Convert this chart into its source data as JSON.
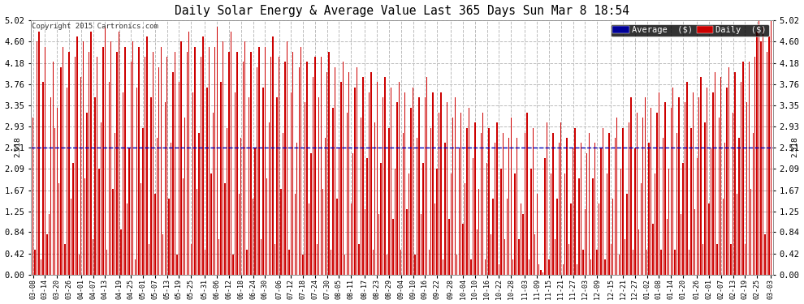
{
  "title": "Daily Solar Energy & Average Value Last 365 Days Sun Mar 8 18:54",
  "copyright": "Copyright 2015 Cartronics.com",
  "avg_value": 2.518,
  "ymax": 5.02,
  "yticks": [
    0.0,
    0.42,
    0.84,
    1.25,
    1.67,
    2.09,
    2.51,
    2.93,
    3.35,
    3.76,
    4.18,
    4.6,
    5.02
  ],
  "bar_color": "#cc0000",
  "avg_line_color": "#0000bb",
  "background_color": "#ffffff",
  "grid_color": "#bbbbbb",
  "legend_avg_bg": "#000099",
  "legend_daily_bg": "#cc0000",
  "legend_text_color": "#ffffff",
  "bar_width": 0.55,
  "xtick_labels": [
    "03-08",
    "03-14",
    "03-20",
    "03-26",
    "04-01",
    "04-07",
    "04-13",
    "04-19",
    "04-25",
    "05-01",
    "05-07",
    "05-13",
    "05-19",
    "05-25",
    "05-31",
    "06-06",
    "06-12",
    "06-18",
    "06-24",
    "06-30",
    "07-06",
    "07-12",
    "07-18",
    "07-24",
    "07-30",
    "08-05",
    "08-11",
    "08-17",
    "08-23",
    "08-29",
    "09-04",
    "09-10",
    "09-16",
    "09-22",
    "09-28",
    "10-04",
    "10-10",
    "10-16",
    "10-22",
    "10-28",
    "11-03",
    "11-09",
    "11-15",
    "11-21",
    "11-27",
    "12-03",
    "12-09",
    "12-15",
    "12-21",
    "12-27",
    "01-02",
    "01-08",
    "01-14",
    "01-20",
    "01-26",
    "02-01",
    "02-07",
    "02-13",
    "02-19",
    "02-25",
    "03-03"
  ],
  "daily_values": [
    3.1,
    0.5,
    4.6,
    4.8,
    0.3,
    3.8,
    4.5,
    0.8,
    1.2,
    3.5,
    4.2,
    2.9,
    3.3,
    1.8,
    4.1,
    4.5,
    0.6,
    3.7,
    4.4,
    1.5,
    2.2,
    4.3,
    4.7,
    0.4,
    3.9,
    4.6,
    1.9,
    3.2,
    4.4,
    4.8,
    0.7,
    3.5,
    4.3,
    2.1,
    3.0,
    4.5,
    4.9,
    0.5,
    3.8,
    4.6,
    1.7,
    2.8,
    4.4,
    4.8,
    0.9,
    3.6,
    4.5,
    1.4,
    2.5,
    4.2,
    4.6,
    0.3,
    3.7,
    4.5,
    1.8,
    2.9,
    4.3,
    4.7,
    0.6,
    3.5,
    4.4,
    1.6,
    2.7,
    4.1,
    4.5,
    0.8,
    3.4,
    4.3,
    1.5,
    2.6,
    4.0,
    4.4,
    0.4,
    3.8,
    4.6,
    1.9,
    3.1,
    4.4,
    4.8,
    0.6,
    3.6,
    4.5,
    1.7,
    2.8,
    4.3,
    4.7,
    0.5,
    3.7,
    4.5,
    2.0,
    3.2,
    4.5,
    4.9,
    0.7,
    3.8,
    4.6,
    1.8,
    2.9,
    4.4,
    4.8,
    0.4,
    3.6,
    4.4,
    1.6,
    2.7,
    4.2,
    4.6,
    0.5,
    3.5,
    4.4,
    1.5,
    2.5,
    4.1,
    4.5,
    0.7,
    3.7,
    4.5,
    1.9,
    3.0,
    4.3,
    4.7,
    0.6,
    3.5,
    4.3,
    1.7,
    2.8,
    4.2,
    4.6,
    0.5,
    3.6,
    4.4,
    1.6,
    2.6,
    4.1,
    4.5,
    0.4,
    3.4,
    4.2,
    1.4,
    2.4,
    3.9,
    4.3,
    0.6,
    3.5,
    4.3,
    1.7,
    2.7,
    4.0,
    4.4,
    0.5,
    3.3,
    4.1,
    1.5,
    2.5,
    3.8,
    4.2,
    0.4,
    3.2,
    4.0,
    1.4,
    2.4,
    3.7,
    4.1,
    0.6,
    3.1,
    3.9,
    1.3,
    2.3,
    3.6,
    4.0,
    0.5,
    3.0,
    3.8,
    1.2,
    2.2,
    3.5,
    3.9,
    0.4,
    2.9,
    3.7,
    1.1,
    2.1,
    3.4,
    3.8,
    0.5,
    2.8,
    3.6,
    1.3,
    2.0,
    3.3,
    3.7,
    0.4,
    2.7,
    3.5,
    1.2,
    2.2,
    3.5,
    3.9,
    0.5,
    2.9,
    3.6,
    1.4,
    2.1,
    3.2,
    3.6,
    0.3,
    2.6,
    3.4,
    1.1,
    2.0,
    3.1,
    3.5,
    0.4,
    2.5,
    3.2,
    1.0,
    1.8,
    2.9,
    3.3,
    0.3,
    2.3,
    3.0,
    0.9,
    1.7,
    2.8,
    3.2,
    0.3,
    2.2,
    2.9,
    0.8,
    1.5,
    2.6,
    3.0,
    0.2,
    2.1,
    2.8,
    0.7,
    1.5,
    2.7,
    3.1,
    0.3,
    2.0,
    2.7,
    0.7,
    1.4,
    1.2,
    2.8,
    3.2,
    0.3,
    2.1,
    2.9,
    0.8,
    1.6,
    0.2,
    0.1,
    0.05,
    2.3,
    3.0,
    0.3,
    2.0,
    2.8,
    0.7,
    1.5,
    2.6,
    3.0,
    0.2,
    2.0,
    2.7,
    0.6,
    1.4,
    2.5,
    2.9,
    0.2,
    1.9,
    2.6,
    0.5,
    1.3,
    2.4,
    2.8,
    0.3,
    1.9,
    2.6,
    0.5,
    1.4,
    2.5,
    2.9,
    0.3,
    2.0,
    2.8,
    0.6,
    1.5,
    2.7,
    3.1,
    0.4,
    2.1,
    2.9,
    0.7,
    1.6,
    3.0,
    3.5,
    0.5,
    2.5,
    3.2,
    0.9,
    1.8,
    3.1,
    3.5,
    0.5,
    2.6,
    3.3,
    1.0,
    2.0,
    3.2,
    3.6,
    0.5,
    2.7,
    3.4,
    1.1,
    2.1,
    3.3,
    3.7,
    0.5,
    2.8,
    3.5,
    1.2,
    2.2,
    3.4,
    3.8,
    0.5,
    2.9,
    3.6,
    1.3,
    2.3,
    3.5,
    3.9,
    0.6,
    3.0,
    3.7,
    1.4,
    2.5,
    3.6,
    4.0,
    0.6,
    3.1,
    3.9,
    1.5,
    2.6,
    3.7,
    4.1,
    0.6,
    3.2,
    4.0,
    1.6,
    2.7,
    3.8,
    4.2,
    0.6,
    3.4,
    4.2,
    1.7,
    2.8,
    4.3,
    4.8,
    5.02,
    4.6,
    4.9,
    0.8,
    4.4,
    4.7,
    5.0
  ]
}
